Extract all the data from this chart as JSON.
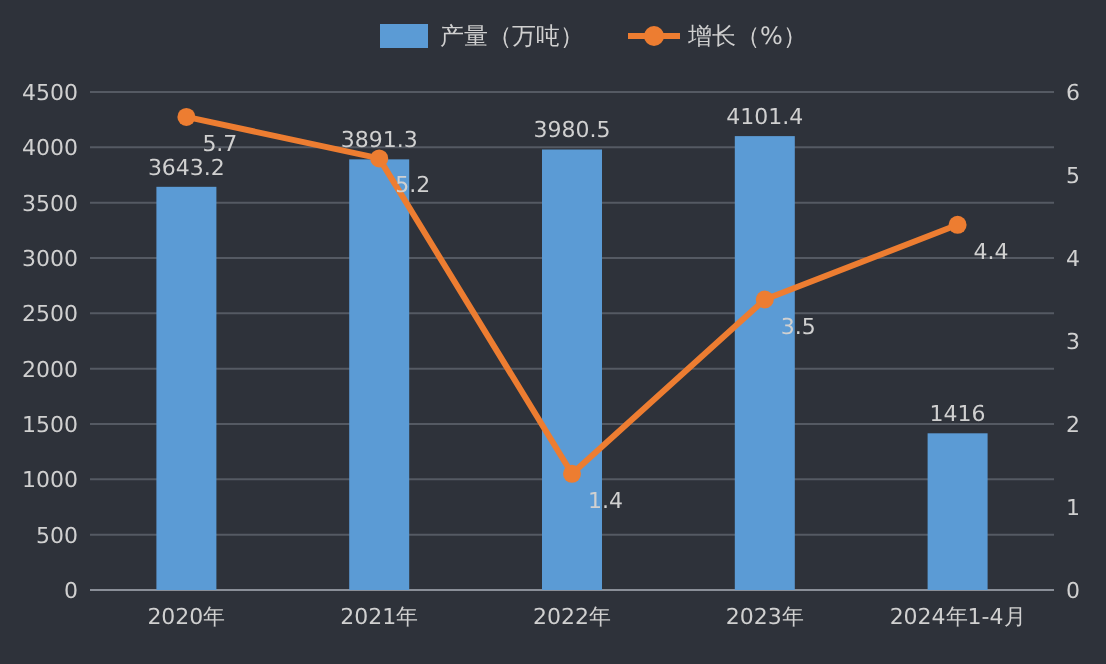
{
  "chart_data": {
    "type": "bar",
    "categories": [
      "2020年",
      "2021年",
      "2022年",
      "2023年",
      "2024年1-4月"
    ],
    "series": [
      {
        "name": "产量（万吨）",
        "color": "#5b9bd5",
        "values": [
          3643.2,
          3891.3,
          3980.5,
          4101.4,
          1416
        ]
      },
      {
        "name": "增长（%）",
        "type": "line",
        "axis": "y2",
        "color": "#ed7d31",
        "marker": "circle",
        "values": [
          5.7,
          5.2,
          1.4,
          3.5,
          4.4
        ]
      }
    ],
    "ylim": [
      0,
      4500
    ],
    "yticks": [
      0,
      500,
      1000,
      1500,
      2000,
      2500,
      3000,
      3500,
      4000,
      4500
    ],
    "y2lim": [
      0,
      6
    ],
    "y2ticks": [
      0,
      1,
      2,
      3,
      4,
      5,
      6
    ],
    "grid": "y",
    "legend": "top",
    "data_labels": true
  }
}
